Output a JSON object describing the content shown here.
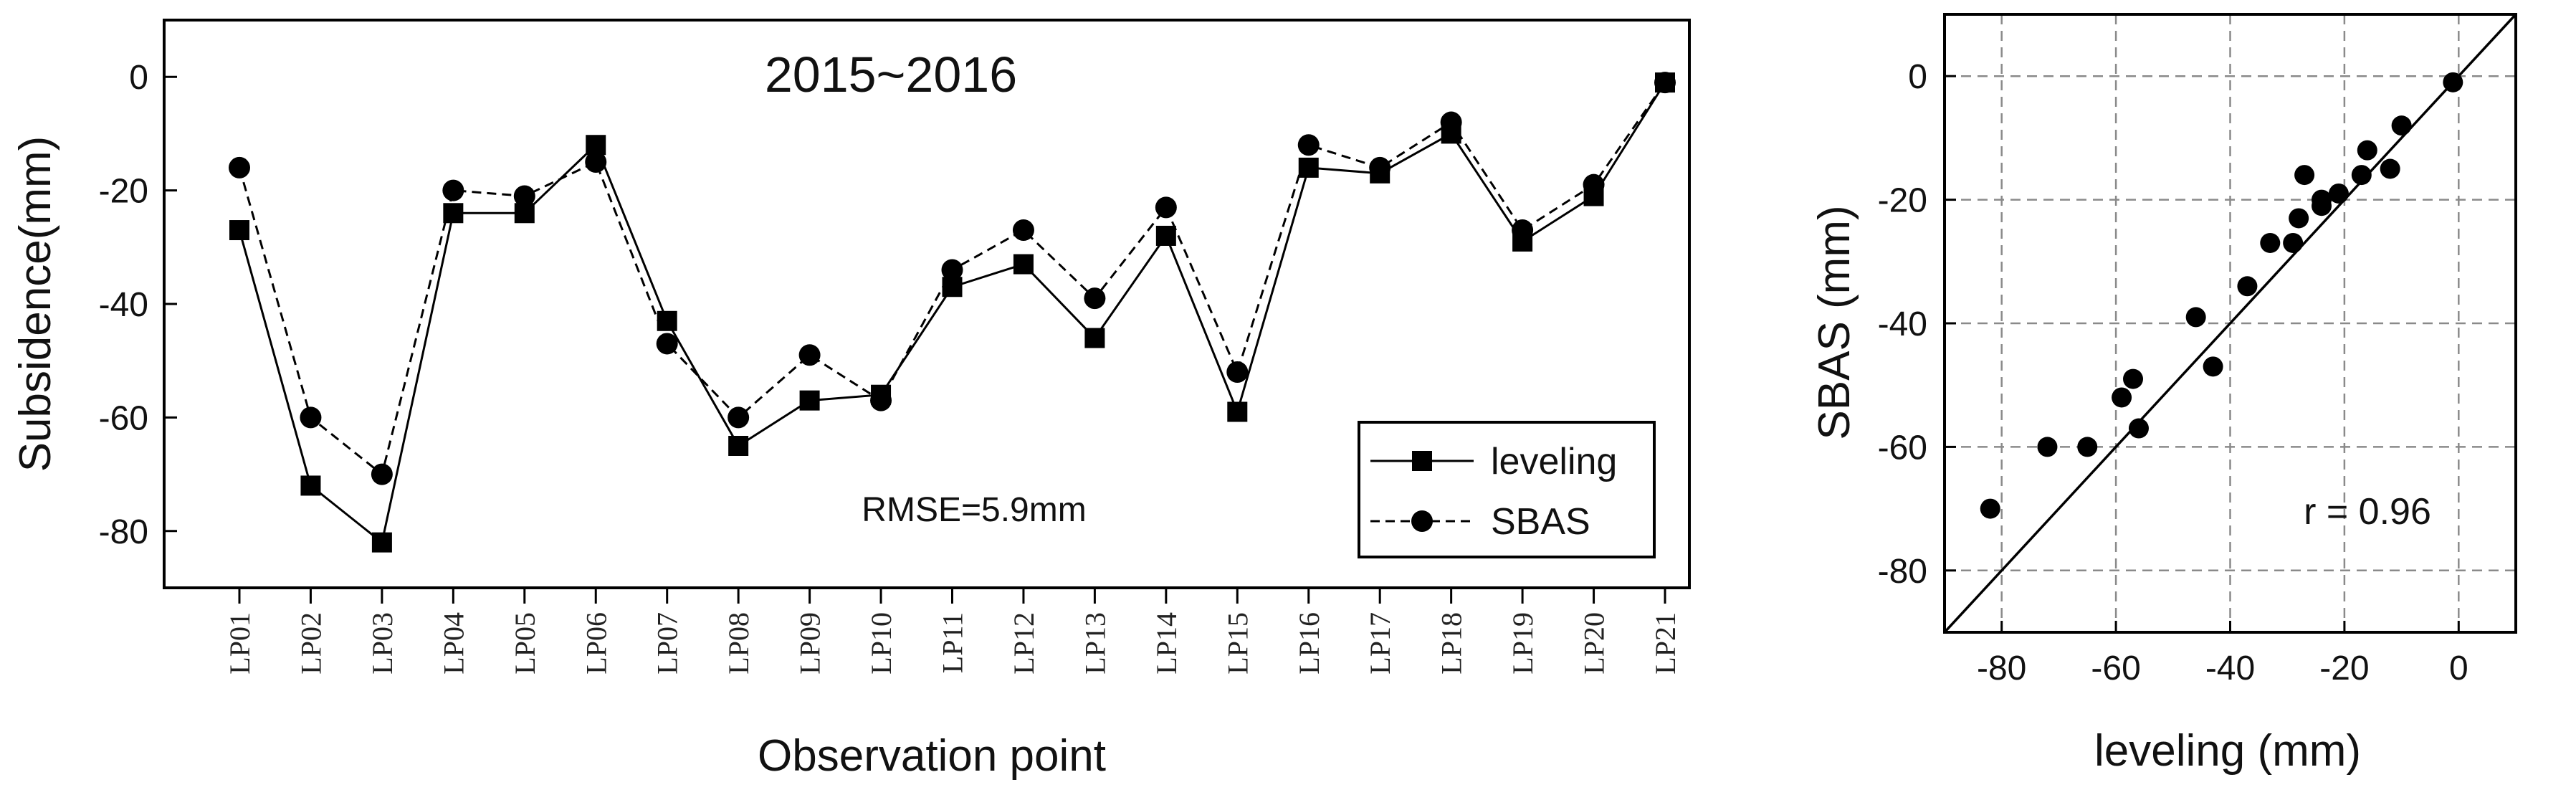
{
  "chart_data": [
    {
      "type": "line",
      "title": "2015~2016",
      "xlabel": "Observation point",
      "ylabel": "Subsidence(mm)",
      "ylim": [
        -90,
        10
      ],
      "yticks": [
        0,
        -20,
        -40,
        -60,
        -80
      ],
      "categories": [
        "LP01",
        "LP02",
        "LP03",
        "LP04",
        "LP05",
        "LP06",
        "LP07",
        "LP08",
        "LP09",
        "LP10",
        "LP11",
        "LP12",
        "LP13",
        "LP14",
        "LP15",
        "LP16",
        "LP17",
        "LP18",
        "LP19",
        "LP20",
        "LP21"
      ],
      "series": [
        {
          "name": "leveling",
          "style": "solid",
          "marker": "square",
          "values": [
            -27,
            -72,
            -82,
            -24,
            -24,
            -12,
            -43,
            -65,
            -57,
            -56,
            -37,
            -33,
            -46,
            -28,
            -59,
            -16,
            -17,
            -10,
            -29,
            -21,
            -1
          ]
        },
        {
          "name": "SBAS",
          "style": "dashed",
          "marker": "circle",
          "values": [
            -16,
            -60,
            -70,
            -20,
            -21,
            -15,
            -47,
            -60,
            -49,
            -57,
            -34,
            -27,
            -39,
            -23,
            -52,
            -12,
            -16,
            -8,
            -27,
            -19,
            -1
          ]
        }
      ],
      "annotation": "RMSE=5.9mm",
      "legend_position": "lower-right"
    },
    {
      "type": "scatter",
      "xlabel": "leveling (mm)",
      "ylabel": "SBAS (mm)",
      "xlim": [
        -90,
        10
      ],
      "ylim": [
        -90,
        10
      ],
      "xticks": [
        -80,
        -60,
        -40,
        -20,
        0
      ],
      "yticks": [
        0,
        -20,
        -40,
        -60,
        -80
      ],
      "grid": true,
      "reference_line": "y = x",
      "annotation": "r = 0.96",
      "points_x": [
        -27,
        -72,
        -82,
        -24,
        -24,
        -12,
        -43,
        -65,
        -57,
        -56,
        -37,
        -33,
        -46,
        -28,
        -59,
        -16,
        -17,
        -10,
        -29,
        -21,
        -1
      ],
      "points_y": [
        -16,
        -60,
        -70,
        -20,
        -21,
        -15,
        -47,
        -60,
        -49,
        -57,
        -34,
        -27,
        -39,
        -23,
        -52,
        -12,
        -16,
        -8,
        -27,
        -19,
        -1
      ]
    }
  ]
}
